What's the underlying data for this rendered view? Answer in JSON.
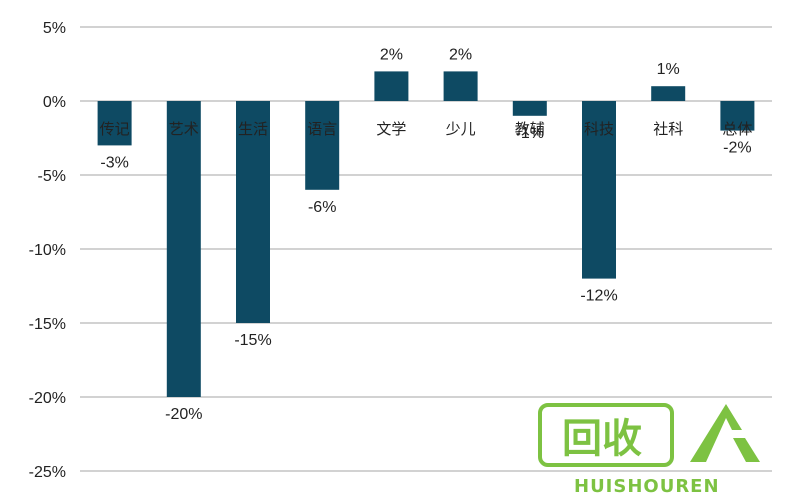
{
  "chart_data": {
    "type": "bar",
    "categories": [
      "传记",
      "艺术",
      "生活",
      "语言",
      "文学",
      "少儿",
      "教辅",
      "科技",
      "社科",
      "总体"
    ],
    "values": [
      -3,
      -20,
      -15,
      -6,
      2,
      2,
      -1,
      -12,
      1,
      -2
    ],
    "data_labels": [
      "-3%",
      "-20%",
      "-15%",
      "-6%",
      "2%",
      "2%",
      "-1%",
      "-12%",
      "1%",
      "-2%"
    ],
    "y_ticks": [
      5,
      0,
      -5,
      -10,
      -15,
      -20,
      -25
    ],
    "y_tick_labels": [
      "5%",
      "0%",
      "-5%",
      "-10%",
      "-15%",
      "-20%",
      "-25%"
    ],
    "ylim": [
      -25,
      5
    ],
    "title": "",
    "xlabel": "",
    "ylabel": "",
    "grid": "horizontal",
    "bar_color": "#0E4A63",
    "grid_color": "#A6A6A6"
  },
  "watermark": {
    "logo_text": "回收",
    "brand_text": "HUISHOUREN",
    "color": "#7DC242"
  }
}
